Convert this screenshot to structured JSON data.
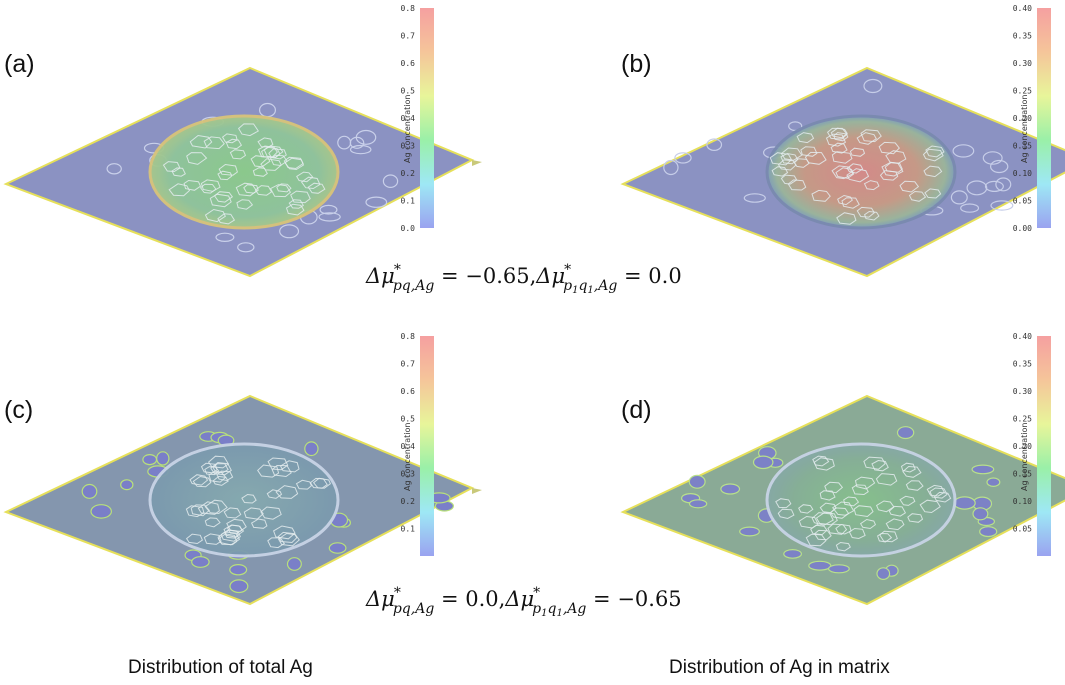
{
  "panels": [
    {
      "label": "(a)",
      "colorbar_title": "Ag concentration",
      "ticks": [
        "0.8",
        "0.7",
        "0.6",
        "0.5",
        "0.4",
        "0.3",
        "0.2",
        "0.1",
        "0.0"
      ]
    },
    {
      "label": "(b)",
      "colorbar_title": "Ag concentration",
      "ticks": [
        "0.40",
        "0.35",
        "0.30",
        "0.25",
        "0.20",
        "0.15",
        "0.10",
        "0.05",
        "0.00"
      ]
    },
    {
      "label": "(c)",
      "colorbar_title": "Ag concentration",
      "ticks": [
        "0.8",
        "0.7",
        "0.6",
        "0.5",
        "0.4",
        "0.3",
        "0.2",
        "0.1"
      ]
    },
    {
      "label": "(d)",
      "colorbar_title": "Ag concentration",
      "ticks": [
        "0.40",
        "0.35",
        "0.30",
        "0.25",
        "0.20",
        "0.15",
        "0.10",
        "0.05"
      ]
    }
  ],
  "equations": {
    "row1": {
      "lhs1": "Δμ",
      "sub1": "pq,Ag",
      "val1": "= −0.65,",
      "lhs2": "Δμ",
      "sub2a": "p",
      "sub2b": "1",
      "sub2c": "q",
      "sub2d": "1",
      "sub2e": ",Ag",
      "val2": "= 0.0"
    },
    "row2": {
      "lhs1": "Δμ",
      "sub1": "pq,Ag",
      "val1": "= 0.0,",
      "lhs2": "Δμ",
      "sub2a": "p",
      "sub2b": "1",
      "sub2c": "q",
      "sub2d": "1",
      "sub2e": ",Ag",
      "val2": "= −0.65"
    }
  },
  "star": "*",
  "captions": {
    "left": "Distribution of total Ag",
    "right": "Distribution of Ag in matrix"
  }
}
